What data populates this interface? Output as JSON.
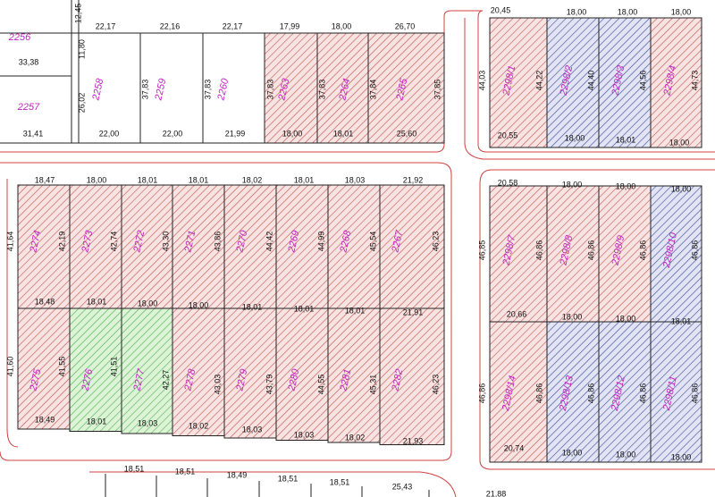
{
  "lots": [
    {
      "label": "2256",
      "hatch": "none"
    },
    {
      "label": "2257",
      "hatch": "none"
    },
    {
      "label": "2258",
      "hatch": "none"
    },
    {
      "label": "2259",
      "hatch": "none"
    },
    {
      "label": "2260",
      "hatch": "none"
    },
    {
      "label": "2263",
      "hatch": "red"
    },
    {
      "label": "2264",
      "hatch": "red"
    },
    {
      "label": "2265",
      "hatch": "red"
    },
    {
      "label": "2298/1",
      "hatch": "red"
    },
    {
      "label": "2298/2",
      "hatch": "blue"
    },
    {
      "label": "2298/3",
      "hatch": "blue"
    },
    {
      "label": "2298/4",
      "hatch": "red"
    },
    {
      "label": "2274",
      "hatch": "red"
    },
    {
      "label": "2273",
      "hatch": "red"
    },
    {
      "label": "2272",
      "hatch": "red"
    },
    {
      "label": "2271",
      "hatch": "red"
    },
    {
      "label": "2270",
      "hatch": "red"
    },
    {
      "label": "2269",
      "hatch": "red"
    },
    {
      "label": "2268",
      "hatch": "red"
    },
    {
      "label": "2267",
      "hatch": "red"
    },
    {
      "label": "2275",
      "hatch": "red"
    },
    {
      "label": "2276",
      "hatch": "green"
    },
    {
      "label": "2277",
      "hatch": "green"
    },
    {
      "label": "2278",
      "hatch": "red"
    },
    {
      "label": "2279",
      "hatch": "red"
    },
    {
      "label": "2280",
      "hatch": "red"
    },
    {
      "label": "2281",
      "hatch": "red"
    },
    {
      "label": "2282",
      "hatch": "red"
    },
    {
      "label": "2298/7",
      "hatch": "red"
    },
    {
      "label": "2298/8",
      "hatch": "red"
    },
    {
      "label": "2298/9",
      "hatch": "red"
    },
    {
      "label": "2298/10",
      "hatch": "blue"
    },
    {
      "label": "2298/14",
      "hatch": "red"
    },
    {
      "label": "2298/13",
      "hatch": "blue"
    },
    {
      "label": "2298/12",
      "hatch": "blue"
    },
    {
      "label": "2298/11",
      "hatch": "blue"
    }
  ],
  "dimensions": [
    "33,38",
    "31,41",
    "12,45",
    "11,80",
    "22,17",
    "22,16",
    "22,17",
    "17,99",
    "18,00",
    "26,70",
    "26,02",
    "37,83",
    "37,83",
    "37,83",
    "37,83",
    "37,84",
    "37,85",
    "22,00",
    "22,00",
    "21,99",
    "18,00",
    "18,01",
    "25,60",
    "20,45",
    "18,00",
    "18,00",
    "18,00",
    "44,03",
    "44,22",
    "44,40",
    "44,56",
    "44,73",
    "20,55",
    "18,00",
    "18,01",
    "18,00",
    "18,47",
    "18,00",
    "18,01",
    "18,01",
    "18,02",
    "18,01",
    "18,03",
    "21,92",
    "41,64",
    "42,19",
    "42,74",
    "43,30",
    "43,86",
    "44,42",
    "44,99",
    "45,54",
    "46,23",
    "18,48",
    "18,01",
    "18,00",
    "18,00",
    "18,01",
    "18,01",
    "18,01",
    "21,91",
    "41,60",
    "41,55",
    "41,51",
    "42,27",
    "43,03",
    "43,79",
    "44,55",
    "45,31",
    "46,23",
    "18,49",
    "18,01",
    "18,03",
    "18,02",
    "18,03",
    "18,03",
    "18,02",
    "21,93",
    "20,58",
    "18,00",
    "18,00",
    "18,00",
    "46,85",
    "46,86",
    "46,86",
    "46,86",
    "46,86",
    "20,66",
    "18,00",
    "18,00",
    "18,01",
    "46,86",
    "46,86",
    "46,86",
    "46,86",
    "46,86",
    "20,74",
    "18,00",
    "18,00",
    "18,00",
    "18,51",
    "18,51",
    "18,49",
    "18,51",
    "18,51",
    "25,43",
    "21,88"
  ]
}
